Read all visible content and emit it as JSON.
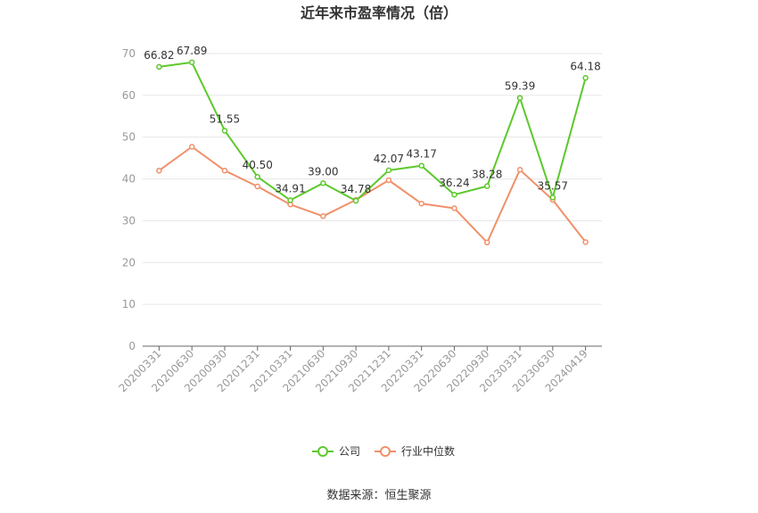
{
  "chart_data": {
    "type": "line",
    "title": "近年来市盈率情况（倍）",
    "categories": [
      "20200331",
      "20200630",
      "20200930",
      "20201231",
      "20210331",
      "20210630",
      "20210930",
      "20211231",
      "20220331",
      "20220630",
      "20220930",
      "20230331",
      "20230630",
      "20240419"
    ],
    "ylim": [
      0,
      70
    ],
    "yticks": [
      0,
      10,
      20,
      30,
      40,
      50,
      60,
      70
    ],
    "grid": true,
    "legend_position": "bottom",
    "series": [
      {
        "name": "公司",
        "color": "#5cc92c",
        "values": [
          66.82,
          67.89,
          51.55,
          40.5,
          34.91,
          39.0,
          34.78,
          42.07,
          43.17,
          36.24,
          38.28,
          59.39,
          35.57,
          64.18
        ],
        "labels": [
          "66.82",
          "67.89",
          "51.55",
          "40.50",
          "34.91",
          "39.00",
          "34.78",
          "42.07",
          "43.17",
          "36.24",
          "38.28",
          "59.39",
          "35.57",
          "64.18"
        ]
      },
      {
        "name": "行业中位数",
        "color": "#f0906a",
        "values": [
          42.0,
          47.7,
          42.0,
          38.2,
          33.9,
          31.1,
          35.0,
          39.7,
          34.1,
          33.0,
          24.8,
          42.2,
          35.0,
          24.9
        ]
      }
    ]
  },
  "source": "数据来源：恒生聚源"
}
